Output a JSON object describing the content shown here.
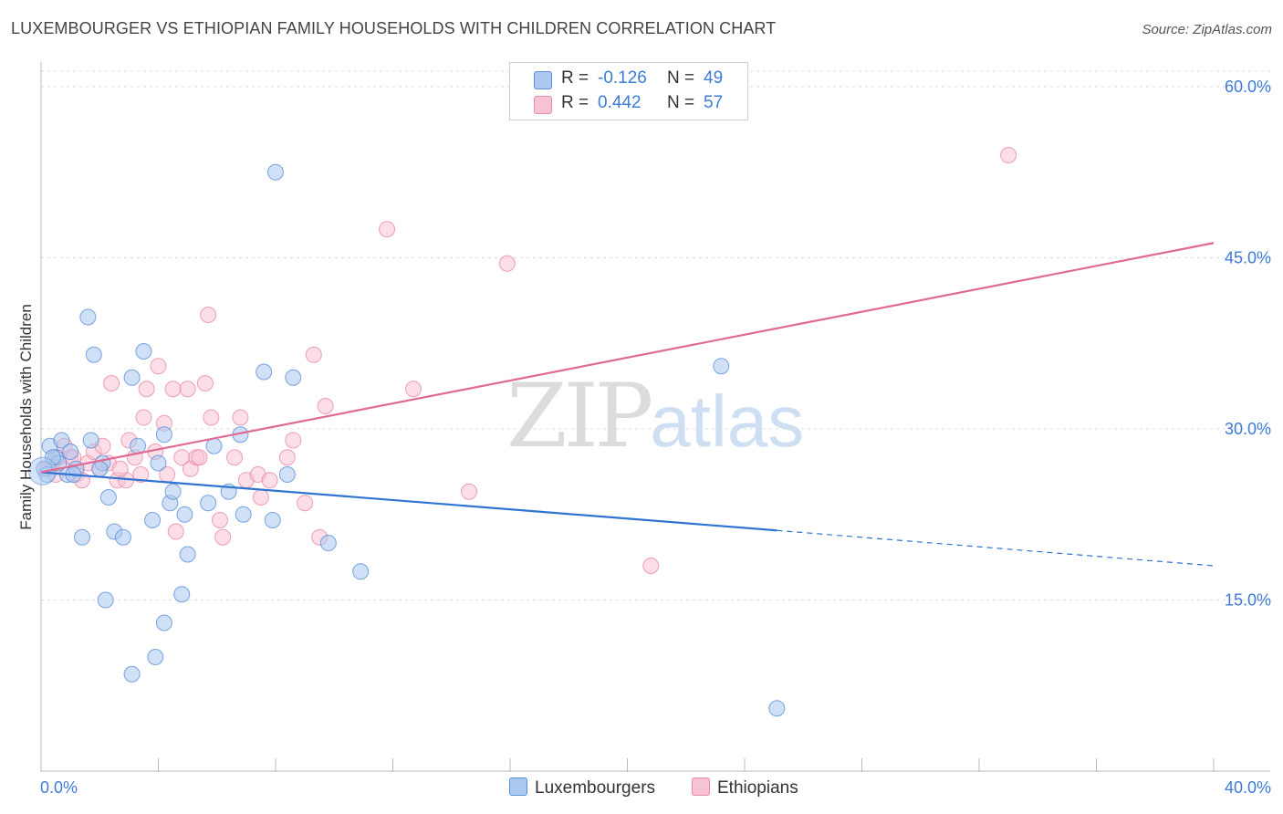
{
  "title": "LUXEMBOURGER VS ETHIOPIAN FAMILY HOUSEHOLDS WITH CHILDREN CORRELATION CHART",
  "source": "Source: ZipAtlas.com",
  "watermark": {
    "zip": "ZIP",
    "atlas": "atlas"
  },
  "legend": {
    "rows": [
      {
        "r_label": "R =",
        "r_value": "-0.126",
        "n_label": "N =",
        "n_value": "49",
        "color": "#aac8f0",
        "border": "#5b8fd8"
      },
      {
        "r_label": "R =",
        "r_value": "0.442",
        "n_label": "N =",
        "n_value": "57",
        "color": "#f7c3d3",
        "border": "#e88aa8"
      }
    ]
  },
  "bottom_legend": [
    {
      "label": "Luxembourgers",
      "color": "#aac8f0",
      "border": "#5b8fd8"
    },
    {
      "label": "Ethiopians",
      "color": "#f7c3d3",
      "border": "#e88aa8"
    }
  ],
  "chart_data": {
    "type": "scatter",
    "title": "LUXEMBOURGER VS ETHIOPIAN FAMILY HOUSEHOLDS WITH CHILDREN CORRELATION CHART",
    "xlabel": "",
    "ylabel": "Family Households with Children",
    "xlim": [
      0,
      40
    ],
    "ylim": [
      0,
      62
    ],
    "x_tick_labels": [
      "0.0%",
      "40.0%"
    ],
    "y_ticks": [
      15,
      30,
      45,
      60
    ],
    "y_tick_labels": [
      "15.0%",
      "30.0%",
      "45.0%",
      "60.0%"
    ],
    "grid": true,
    "series": [
      {
        "name": "Luxembourgers",
        "color": "#5b8fd8",
        "fill": "#aac8f0",
        "points": [
          [
            0.1,
            26.5
          ],
          [
            0.3,
            28.5
          ],
          [
            0.5,
            27.5
          ],
          [
            0.7,
            29.0
          ],
          [
            0.9,
            26.0
          ],
          [
            1.0,
            28.0
          ],
          [
            1.2,
            26.5
          ],
          [
            1.4,
            20.5
          ],
          [
            1.6,
            39.8
          ],
          [
            1.7,
            29.0
          ],
          [
            1.8,
            36.5
          ],
          [
            2.1,
            27.0
          ],
          [
            2.0,
            26.5
          ],
          [
            2.3,
            24.0
          ],
          [
            2.5,
            21.0
          ],
          [
            2.8,
            20.5
          ],
          [
            3.1,
            34.5
          ],
          [
            3.3,
            28.5
          ],
          [
            3.5,
            36.8
          ],
          [
            3.8,
            22.0
          ],
          [
            4.0,
            27.0
          ],
          [
            4.2,
            29.5
          ],
          [
            4.4,
            23.5
          ],
          [
            4.5,
            24.5
          ],
          [
            4.9,
            22.5
          ],
          [
            5.0,
            19.0
          ],
          [
            5.7,
            23.5
          ],
          [
            5.9,
            28.5
          ],
          [
            6.4,
            24.5
          ],
          [
            6.8,
            29.5
          ],
          [
            6.9,
            22.5
          ],
          [
            7.6,
            35.0
          ],
          [
            7.9,
            22.0
          ],
          [
            8.0,
            52.5
          ],
          [
            8.4,
            26.0
          ],
          [
            8.6,
            34.5
          ],
          [
            9.8,
            20.0
          ],
          [
            10.9,
            17.5
          ],
          [
            2.2,
            15.0
          ],
          [
            4.8,
            15.5
          ],
          [
            4.2,
            13.0
          ],
          [
            3.9,
            10.0
          ],
          [
            3.1,
            8.5
          ],
          [
            25.1,
            5.5
          ],
          [
            23.2,
            35.5
          ],
          [
            0.6,
            27.0
          ],
          [
            1.1,
            26.0
          ],
          [
            0.4,
            27.5
          ],
          [
            0.2,
            26.0
          ]
        ]
      },
      {
        "name": "Ethiopians",
        "color": "#e88aa8",
        "fill": "#f7c3d3",
        "points": [
          [
            0.2,
            26.5
          ],
          [
            0.4,
            27.0
          ],
          [
            0.6,
            27.5
          ],
          [
            0.8,
            28.5
          ],
          [
            1.0,
            27.5
          ],
          [
            1.2,
            26.0
          ],
          [
            1.4,
            25.5
          ],
          [
            1.6,
            27.0
          ],
          [
            1.8,
            28.0
          ],
          [
            2.0,
            26.5
          ],
          [
            2.1,
            28.5
          ],
          [
            2.3,
            27.0
          ],
          [
            2.4,
            34.0
          ],
          [
            2.6,
            25.5
          ],
          [
            2.9,
            25.5
          ],
          [
            3.0,
            29.0
          ],
          [
            3.2,
            27.5
          ],
          [
            3.4,
            26.0
          ],
          [
            3.5,
            31.0
          ],
          [
            3.6,
            33.5
          ],
          [
            3.9,
            28.0
          ],
          [
            4.0,
            35.5
          ],
          [
            4.2,
            30.5
          ],
          [
            4.3,
            26.0
          ],
          [
            4.5,
            33.5
          ],
          [
            4.6,
            21.0
          ],
          [
            4.8,
            27.5
          ],
          [
            5.0,
            33.5
          ],
          [
            5.1,
            26.5
          ],
          [
            5.3,
            27.5
          ],
          [
            5.4,
            27.5
          ],
          [
            5.6,
            34.0
          ],
          [
            5.7,
            40.0
          ],
          [
            5.8,
            31.0
          ],
          [
            6.1,
            22.0
          ],
          [
            6.2,
            20.5
          ],
          [
            6.6,
            27.5
          ],
          [
            6.8,
            31.0
          ],
          [
            7.0,
            25.5
          ],
          [
            7.4,
            26.0
          ],
          [
            7.5,
            24.0
          ],
          [
            7.8,
            25.5
          ],
          [
            8.4,
            27.5
          ],
          [
            8.6,
            29.0
          ],
          [
            9.0,
            23.5
          ],
          [
            9.3,
            36.5
          ],
          [
            9.7,
            32.0
          ],
          [
            11.8,
            47.5
          ],
          [
            12.7,
            33.5
          ],
          [
            14.6,
            24.5
          ],
          [
            15.9,
            44.5
          ],
          [
            20.8,
            18.0
          ],
          [
            33.0,
            54.0
          ],
          [
            9.5,
            20.5
          ],
          [
            0.5,
            26.0
          ],
          [
            1.1,
            27.5
          ],
          [
            2.7,
            26.5
          ]
        ]
      }
    ],
    "trend_lines": [
      {
        "series": "Luxembourgers",
        "x": [
          0,
          25.1
        ],
        "y": [
          26.2,
          21.1
        ],
        "dashed_extension_to_x": 40,
        "dashed_extension_y": 18.0
      },
      {
        "series": "Ethiopians",
        "x": [
          0,
          40
        ],
        "y": [
          26.2,
          46.3
        ]
      }
    ]
  }
}
